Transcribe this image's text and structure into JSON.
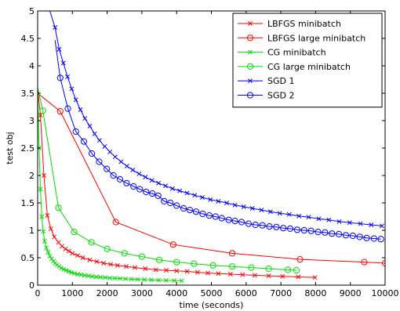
{
  "chart_data": {
    "type": "line",
    "xlabel": "time (seconds)",
    "ylabel": "test obj",
    "xlim": [
      0,
      10000
    ],
    "ylim": [
      0,
      5
    ],
    "xticks": [
      0,
      1000,
      2000,
      3000,
      4000,
      5000,
      6000,
      7000,
      8000,
      9000,
      10000
    ],
    "yticks": [
      0,
      0.5,
      1,
      1.5,
      2,
      2.5,
      3,
      3.5,
      4,
      4.5,
      5
    ],
    "grid": false,
    "legend_position": "top-right",
    "series": [
      {
        "name": "LBFGS minibatch",
        "color": "#ff0000",
        "marker": "x",
        "x": [
          0,
          80,
          180,
          280,
          380,
          480,
          600,
          700,
          800,
          900,
          1000,
          1150,
          1300,
          1500,
          1700,
          1900,
          2100,
          2300,
          2550,
          2800,
          3100,
          3400,
          3700,
          4000,
          4300,
          4600,
          4900,
          5200,
          5550,
          5900,
          6250,
          6650,
          7050,
          7500,
          7980
        ],
        "y": [
          3.6,
          3.1,
          2.0,
          1.27,
          1.03,
          0.88,
          0.78,
          0.71,
          0.66,
          0.62,
          0.58,
          0.54,
          0.5,
          0.46,
          0.43,
          0.4,
          0.38,
          0.36,
          0.34,
          0.32,
          0.3,
          0.28,
          0.27,
          0.26,
          0.25,
          0.235,
          0.22,
          0.21,
          0.2,
          0.19,
          0.18,
          0.17,
          0.16,
          0.15,
          0.14
        ]
      },
      {
        "name": "LBFGS large minibatch",
        "color": "#ff0000",
        "marker": "o",
        "x": [
          0,
          650,
          2250,
          3900,
          5600,
          7550,
          9400,
          10000
        ],
        "y": [
          3.5,
          3.17,
          1.15,
          0.74,
          0.58,
          0.47,
          0.42,
          0.4
        ]
      },
      {
        "name": "CG minibatch",
        "color": "#00dd00",
        "marker": "x",
        "x": [
          0,
          40,
          80,
          120,
          160,
          200,
          250,
          300,
          350,
          400,
          450,
          500,
          560,
          620,
          680,
          750,
          820,
          900,
          980,
          1060,
          1150,
          1250,
          1350,
          1460,
          1570,
          1690,
          1810,
          1940,
          2080,
          2220,
          2370,
          2530,
          2700,
          2880,
          3070,
          3270,
          3480,
          3700,
          3930,
          4150
        ],
        "y": [
          3.6,
          2.5,
          1.75,
          1.25,
          0.98,
          0.8,
          0.68,
          0.6,
          0.53,
          0.48,
          0.44,
          0.4,
          0.37,
          0.34,
          0.31,
          0.29,
          0.27,
          0.25,
          0.23,
          0.215,
          0.2,
          0.19,
          0.18,
          0.17,
          0.16,
          0.15,
          0.145,
          0.14,
          0.13,
          0.125,
          0.12,
          0.115,
          0.11,
          0.105,
          0.1,
          0.095,
          0.09,
          0.087,
          0.083,
          0.08
        ]
      },
      {
        "name": "CG large minibatch",
        "color": "#00dd00",
        "marker": "o",
        "x": [
          0,
          150,
          600,
          1050,
          1550,
          2000,
          2500,
          3000,
          3500,
          4000,
          4500,
          5050,
          5600,
          6150,
          6650,
          7200,
          7450
        ],
        "y": [
          3.6,
          3.18,
          1.41,
          0.97,
          0.78,
          0.66,
          0.58,
          0.52,
          0.46,
          0.42,
          0.39,
          0.36,
          0.34,
          0.32,
          0.3,
          0.28,
          0.27
        ]
      },
      {
        "name": "SGD 1",
        "color": "#0000ff",
        "marker": "x",
        "x": [
          350,
          500,
          620,
          740,
          860,
          980,
          1100,
          1230,
          1360,
          1500,
          1640,
          1780,
          1930,
          2080,
          2230,
          2400,
          2570,
          2740,
          2920,
          3100,
          3290,
          3480,
          3680,
          3880,
          4090,
          4300,
          4520,
          4740,
          4970,
          5200,
          5440,
          5680,
          5930,
          6180,
          6440,
          6700,
          6970,
          7240,
          7520,
          7800,
          8090,
          8380,
          8680,
          8980,
          9290,
          9600,
          9910
        ],
        "y": [
          5.0,
          4.7,
          4.3,
          4.05,
          3.8,
          3.58,
          3.38,
          3.2,
          3.04,
          2.9,
          2.76,
          2.64,
          2.53,
          2.43,
          2.34,
          2.25,
          2.17,
          2.1,
          2.03,
          1.97,
          1.91,
          1.86,
          1.81,
          1.76,
          1.72,
          1.68,
          1.64,
          1.6,
          1.56,
          1.53,
          1.5,
          1.46,
          1.43,
          1.4,
          1.37,
          1.34,
          1.31,
          1.29,
          1.26,
          1.24,
          1.21,
          1.19,
          1.16,
          1.14,
          1.12,
          1.1,
          1.08
        ]
      },
      {
        "name": "SGD 2",
        "color": "#0000ff",
        "marker": "o",
        "x": [
          500,
          650,
          870,
          1100,
          1330,
          1560,
          1770,
          1990,
          2180,
          2370,
          2560,
          2760,
          2940,
          3120,
          3300,
          3470,
          3640,
          3820,
          4000,
          4200,
          4380,
          4560,
          4750,
          4940,
          5120,
          5300,
          5500,
          5680,
          5870,
          6070,
          6270,
          6470,
          6670,
          6870,
          7070,
          7270,
          7470,
          7670,
          7870,
          8070,
          8270,
          8470,
          8670,
          8870,
          9070,
          9270,
          9470,
          9680,
          9880
        ],
        "y": [
          4.47,
          3.78,
          3.22,
          2.8,
          2.62,
          2.4,
          2.25,
          2.12,
          2.0,
          1.93,
          1.86,
          1.8,
          1.75,
          1.7,
          1.67,
          1.63,
          1.53,
          1.5,
          1.45,
          1.4,
          1.37,
          1.34,
          1.3,
          1.27,
          1.25,
          1.22,
          1.19,
          1.17,
          1.15,
          1.12,
          1.1,
          1.09,
          1.07,
          1.06,
          1.04,
          1.03,
          1.01,
          1.0,
          0.99,
          0.97,
          0.96,
          0.94,
          0.93,
          0.91,
          0.9,
          0.88,
          0.86,
          0.85,
          0.84
        ]
      }
    ]
  }
}
